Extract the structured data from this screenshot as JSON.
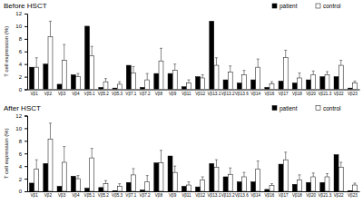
{
  "chart_data": [
    {
      "type": "bar",
      "title": "Before HSCT",
      "y_label": "T cell expression (%)",
      "categories": [
        "Vβ1",
        "Vβ2",
        "Vβ3",
        "Vβ4",
        "Vβ5.1",
        "Vβ5.2",
        "Vβ5.3",
        "Vβ7.1",
        "Vβ7.2",
        "Vβ8",
        "Vβ9",
        "Vβ11",
        "Vβ12",
        "Vβ13.1",
        "Vβ13.2",
        "Vβ13.6",
        "Vβ14",
        "Vβ16",
        "Vβ17",
        "Vβ18",
        "Vβ20",
        "Vβ21.3",
        "Vβ22",
        "Vβ23"
      ],
      "series": [
        {
          "name": "patient",
          "color": "#000000",
          "values": [
            3.5,
            4,
            0.8,
            2.3,
            10,
            0.3,
            0.2,
            3.8,
            0.3,
            2.5,
            2.5,
            0.4,
            2,
            10.8,
            1.5,
            1,
            1.5,
            0.3,
            1.3,
            1,
            1.5,
            2,
            2,
            0.2
          ]
        },
        {
          "name": "control",
          "color": "#ffffff",
          "values": [
            3.5,
            8.3,
            4.6,
            2,
            5.3,
            1.2,
            0.8,
            2.6,
            1.5,
            4.5,
            3,
            1,
            1.8,
            3.8,
            2.7,
            2.3,
            3.5,
            0.9,
            5,
            1.8,
            2.3,
            2.3,
            3.8,
            1
          ],
          "errors": [
            1.5,
            2.5,
            2.5,
            0.5,
            1.5,
            0.5,
            0.4,
            1,
            1,
            2,
            1,
            0.5,
            0.5,
            1.2,
            1,
            0.7,
            1.3,
            0.3,
            1.2,
            0.8,
            0.6,
            0.5,
            0.8,
            0.3
          ]
        }
      ],
      "ylim": [
        0,
        12
      ],
      "yticks": [
        0,
        2,
        4,
        6,
        8,
        10,
        12
      ],
      "legend": "upper right"
    },
    {
      "type": "bar",
      "title": "After HSCT",
      "y_label": "T cell expression (%)",
      "categories": [
        "Vβ1",
        "Vβ2",
        "Vβ3",
        "Vβ4",
        "Vβ5.1",
        "Vβ5.2",
        "Vβ5.3",
        "Vβ7.1",
        "Vβ7.2",
        "Vβ8",
        "Vβ9",
        "Vβ11",
        "Vβ12",
        "Vβ13.1",
        "Vβ13.2",
        "Vβ13.6",
        "Vβ14",
        "Vβ16",
        "Vβ17",
        "Vβ18",
        "Vβ20",
        "Vβ21.3",
        "Vβ22",
        "Vβ23"
      ],
      "series": [
        {
          "name": "patient",
          "color": "#000000",
          "values": [
            1.3,
            4.4,
            0.8,
            2.4,
            0.5,
            0.6,
            0.1,
            1.4,
            0.2,
            4.5,
            5.6,
            0.8,
            0.7,
            4.4,
            2.3,
            1.5,
            1.5,
            0.3,
            4.3,
            1.1,
            1.4,
            1.4,
            5.8,
            0.1
          ]
        },
        {
          "name": "control",
          "color": "#ffffff",
          "values": [
            3.5,
            8.3,
            4.6,
            2,
            5.3,
            1.2,
            0.8,
            2.6,
            1.5,
            4.5,
            3,
            1,
            1.8,
            3.8,
            2.7,
            2.3,
            3.5,
            0.9,
            5,
            1.8,
            2.3,
            2.3,
            3.8,
            1
          ],
          "errors": [
            1.5,
            2.5,
            2.5,
            0.5,
            1.5,
            0.5,
            0.4,
            1,
            1,
            2,
            1,
            0.5,
            0.5,
            1.2,
            1,
            0.7,
            1.3,
            0.3,
            1.2,
            0.8,
            0.6,
            0.5,
            0.8,
            0.3
          ]
        }
      ],
      "ylim": [
        0,
        12
      ],
      "yticks": [
        0,
        2,
        4,
        6,
        8,
        10,
        12
      ],
      "legend": "upper right"
    }
  ]
}
